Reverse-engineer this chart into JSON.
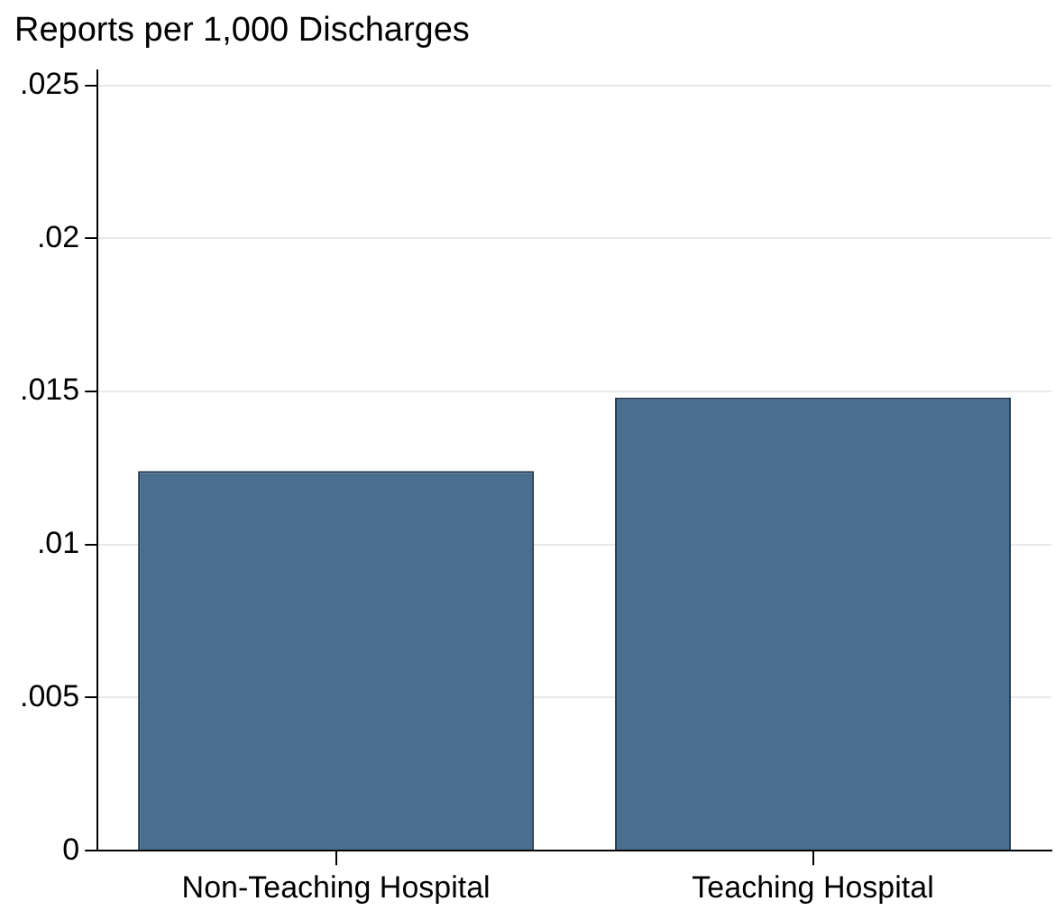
{
  "chart_data": {
    "type": "bar",
    "ylabel": "Reports per 1,000 Discharges",
    "categories": [
      "Non-Teaching Hospital",
      "Teaching Hospital"
    ],
    "values": [
      0.0124,
      0.0148
    ],
    "color": "#4a6e8e",
    "ylim": [
      0,
      0.0255
    ],
    "yticks": [
      0,
      {
        "value": 0.005,
        "label": ".005"
      },
      {
        "value": 0.01,
        "label": ".01"
      },
      {
        "value": 0.015,
        "label": ".015"
      },
      {
        "value": 0.02,
        "label": ".02"
      },
      {
        "value": 0.025,
        "label": ".025"
      }
    ],
    "grid": "y"
  }
}
